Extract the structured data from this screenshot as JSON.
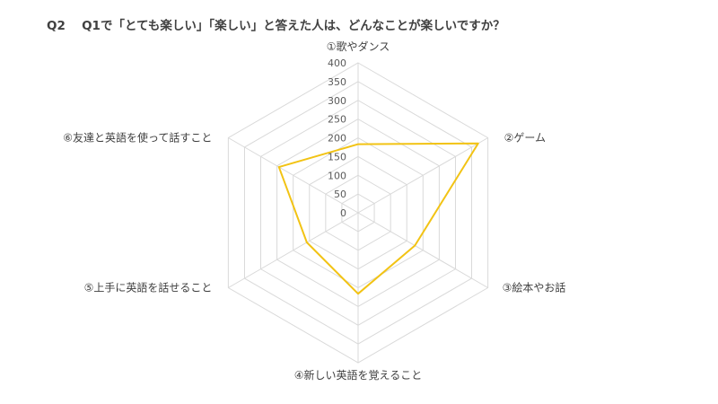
{
  "chart_data": {
    "type": "radar",
    "title": "Q2　 Q1で「とても楽しい」「楽しい」と答えた人は、どんなことが楽しいですか？",
    "categories": [
      "①歌やダンス",
      "②ゲーム",
      "③絵本やお話",
      "④新しい英語を覚えること",
      "⑤上手に英語を話せること",
      "⑥友達と英語を使って話すこと"
    ],
    "series": [
      {
        "values": [
          183,
          370,
          175,
          216,
          158,
          244
        ],
        "color": "#F2C314"
      }
    ],
    "rlim": [
      0,
      400
    ],
    "ticks": [
      0,
      50,
      100,
      150,
      200,
      250,
      300,
      350,
      400
    ],
    "grid": true,
    "grid_color": "#D9D9D9",
    "legend": "none"
  }
}
